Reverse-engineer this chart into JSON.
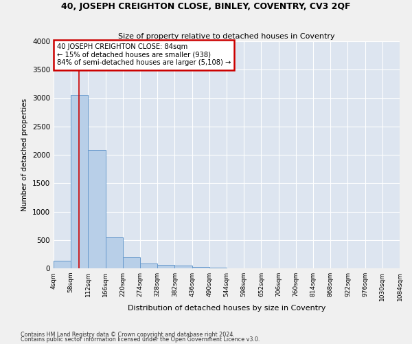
{
  "title1": "40, JOSEPH CREIGHTON CLOSE, BINLEY, COVENTRY, CV3 2QF",
  "title2": "Size of property relative to detached houses in Coventry",
  "xlabel": "Distribution of detached houses by size in Coventry",
  "ylabel": "Number of detached properties",
  "footer1": "Contains HM Land Registry data © Crown copyright and database right 2024.",
  "footer2": "Contains public sector information licensed under the Open Government Licence v3.0.",
  "annotation_line1": "40 JOSEPH CREIGHTON CLOSE: 84sqm",
  "annotation_line2": "← 15% of detached houses are smaller (938)",
  "annotation_line3": "84% of semi-detached houses are larger (5,108) →",
  "property_size": 84,
  "bar_color": "#b8cfe8",
  "bar_edge_color": "#6699cc",
  "vline_color": "#cc0000",
  "annotation_box_edge_color": "#cc0000",
  "bin_edges": [
    4,
    58,
    112,
    166,
    220,
    274,
    328,
    382,
    436,
    490,
    544,
    598,
    652,
    706,
    760,
    814,
    868,
    922,
    976,
    1030,
    1084
  ],
  "bin_heights": [
    130,
    3050,
    2080,
    540,
    200,
    90,
    60,
    50,
    20,
    10,
    5,
    5,
    5,
    0,
    0,
    0,
    0,
    0,
    0,
    0
  ],
  "ylim": [
    0,
    4000
  ],
  "yticks": [
    0,
    500,
    1000,
    1500,
    2000,
    2500,
    3000,
    3500,
    4000
  ],
  "background_color": "#dde5f0",
  "grid_color": "#ffffff",
  "fig_bg_color": "#f0f0f0"
}
